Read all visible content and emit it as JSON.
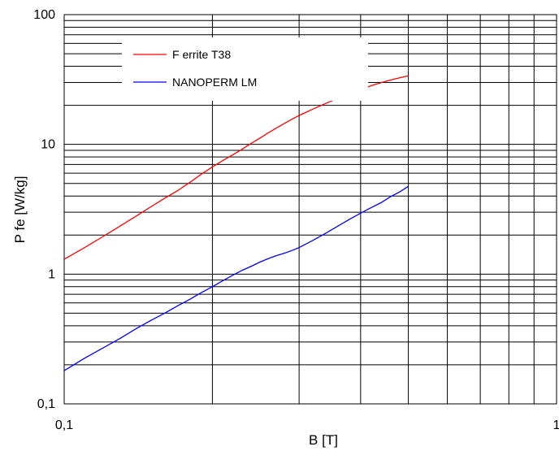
{
  "chart_data": {
    "type": "line",
    "title": "",
    "xlabel": "B  [T]",
    "ylabel": "P fe  [W/kg]",
    "x_scale": "log",
    "y_scale": "log",
    "xlim": [
      0.1,
      1
    ],
    "ylim": [
      0.1,
      100
    ],
    "x_ticks": [
      {
        "value": 0.1,
        "label": "0,1"
      },
      {
        "value": 1,
        "label": "1"
      }
    ],
    "y_ticks": [
      {
        "value": 0.1,
        "label": "0,1"
      },
      {
        "value": 1,
        "label": "1"
      },
      {
        "value": 10,
        "label": "10"
      },
      {
        "value": 100,
        "label": "100"
      }
    ],
    "grid": true,
    "legend_position": "top-left",
    "series": [
      {
        "name": "F errite T38",
        "color": "#ff0000",
        "x": [
          0.1,
          0.11,
          0.12,
          0.13,
          0.14,
          0.15,
          0.16,
          0.17,
          0.18,
          0.19,
          0.2,
          0.21,
          0.22,
          0.23,
          0.24,
          0.25,
          0.26,
          0.27,
          0.28,
          0.29,
          0.3,
          0.32,
          0.34,
          0.36,
          0.38,
          0.4,
          0.42,
          0.44,
          0.46,
          0.48,
          0.5
        ],
        "y": [
          1.3,
          1.6,
          1.95,
          2.35,
          2.8,
          3.3,
          3.85,
          4.4,
          5.1,
          5.9,
          6.7,
          7.5,
          8.3,
          9.2,
          10.2,
          11.2,
          12.3,
          13.4,
          14.5,
          15.6,
          16.7,
          18.7,
          20.7,
          22.7,
          24.6,
          26.5,
          28.3,
          29.9,
          31.3,
          32.6,
          33.8
        ]
      },
      {
        "name": "NANOPERM LM",
        "color": "#0000ff",
        "x": [
          0.1,
          0.11,
          0.12,
          0.13,
          0.14,
          0.15,
          0.16,
          0.17,
          0.18,
          0.19,
          0.2,
          0.21,
          0.22,
          0.23,
          0.24,
          0.25,
          0.26,
          0.27,
          0.28,
          0.29,
          0.3,
          0.32,
          0.34,
          0.36,
          0.38,
          0.4,
          0.42,
          0.44,
          0.46,
          0.48,
          0.5
        ],
        "y": [
          0.18,
          0.225,
          0.27,
          0.32,
          0.38,
          0.44,
          0.5,
          0.57,
          0.64,
          0.72,
          0.8,
          0.89,
          0.98,
          1.07,
          1.15,
          1.24,
          1.32,
          1.39,
          1.45,
          1.52,
          1.6,
          1.82,
          2.07,
          2.35,
          2.65,
          2.95,
          3.25,
          3.55,
          3.95,
          4.3,
          4.75
        ]
      }
    ]
  }
}
